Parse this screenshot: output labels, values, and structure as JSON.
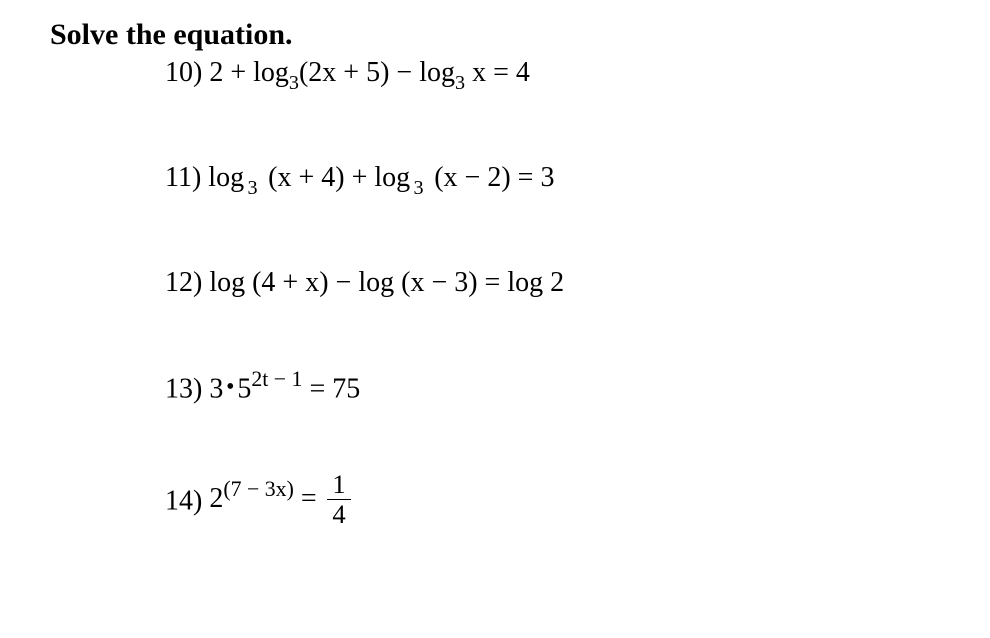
{
  "heading": "Solve the equation.",
  "problems": {
    "p10": {
      "num": "10)",
      "pre": "2 + log",
      "b1": "3",
      "a1": "(2x + 5) − log",
      "b2": "3",
      "a2": " x = 4"
    },
    "p11": {
      "num": "11)",
      "pre": " log",
      "b1": "3",
      "a1": " (x + 4) +  log",
      "b2": "3",
      "a2": " (x − 2) = 3"
    },
    "p12": {
      "num": "12)",
      "body": "log (4 + x) − log (x − 3) = log 2"
    },
    "p13": {
      "num": "13)",
      "base": "3",
      "mult": "5",
      "exp": "2t − 1",
      "rhs": " = 75"
    },
    "p14": {
      "num": "14)",
      "base": "2",
      "exp": "(7 − 3x)",
      "eq": " = ",
      "fnum": "1",
      "fden": "4"
    }
  }
}
